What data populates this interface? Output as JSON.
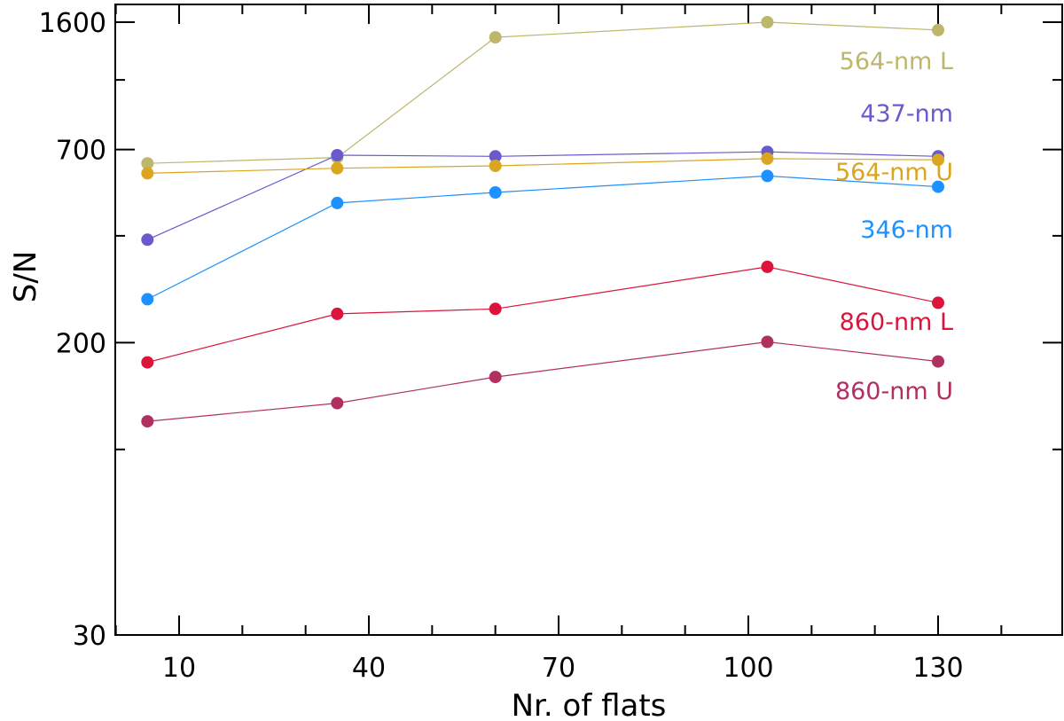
{
  "chart_data": {
    "type": "line",
    "xlabel": "Nr. of flats",
    "ylabel": "S/N",
    "xlim": [
      -5,
      150
    ],
    "ylim": [
      30,
      1700
    ],
    "yscale": "log",
    "xticks": [
      10,
      40,
      70,
      100,
      130
    ],
    "xticks_minor": [
      0,
      20,
      30,
      50,
      60,
      80,
      90,
      110,
      120,
      140
    ],
    "yticks": [
      30,
      200,
      700,
      1600
    ],
    "yticks_minor": [
      100,
      400,
      1100
    ],
    "x": [
      5,
      35,
      60,
      103,
      130
    ],
    "series": [
      {
        "name": "564-nm L",
        "color": "#bdb76b",
        "values": [
          640,
          665,
          1450,
          1600,
          1520
        ]
      },
      {
        "name": "437-nm",
        "color": "#6a5acd",
        "values": [
          390,
          675,
          670,
          690,
          670
        ]
      },
      {
        "name": "564-nm U",
        "color": "#daa520",
        "values": [
          600,
          620,
          630,
          660,
          655
        ]
      },
      {
        "name": "346-nm",
        "color": "#1e90ff",
        "values": [
          265,
          495,
          530,
          590,
          550
        ]
      },
      {
        "name": "860-nm L",
        "color": "#dc143c",
        "values": [
          176,
          241,
          249,
          327,
          259
        ]
      },
      {
        "name": "860-nm U",
        "color": "#b03060",
        "values": [
          120,
          135,
          160,
          201,
          177
        ]
      }
    ]
  }
}
